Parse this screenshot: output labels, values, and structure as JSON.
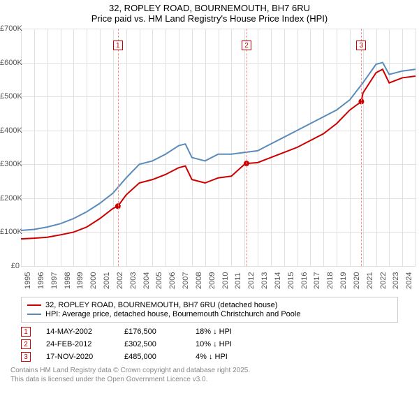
{
  "title_line1": "32, ROPLEY ROAD, BOURNEMOUTH, BH7 6RU",
  "title_line2": "Price paid vs. HM Land Registry's House Price Index (HPI)",
  "chart": {
    "type": "line",
    "background_color": "#ffffff",
    "grid_color": "#e0e0e0",
    "ylim": [
      0,
      700000
    ],
    "ytick_step": 100000,
    "ytick_labels": [
      "£0",
      "£100K",
      "£200K",
      "£300K",
      "£400K",
      "£500K",
      "£600K",
      "£700K"
    ],
    "xlim": [
      1995,
      2025
    ],
    "xtick_step": 1,
    "xtick_labels": [
      "1995",
      "1996",
      "1997",
      "1998",
      "1999",
      "2000",
      "2001",
      "2002",
      "2003",
      "2004",
      "2005",
      "2006",
      "2007",
      "2008",
      "2009",
      "2010",
      "2011",
      "2012",
      "2013",
      "2014",
      "2015",
      "2016",
      "2017",
      "2018",
      "2019",
      "2020",
      "2021",
      "2022",
      "2023",
      "2024",
      "2025"
    ],
    "series": [
      {
        "name": "price_paid",
        "color": "#cc0000",
        "width": 2,
        "x": [
          1995,
          1996,
          1997,
          1998,
          1999,
          2000,
          2001,
          2002,
          2002.37,
          2003,
          2004,
          2005,
          2006,
          2007,
          2007.5,
          2008,
          2009,
          2010,
          2011,
          2012,
          2012.15,
          2013,
          2014,
          2015,
          2016,
          2017,
          2018,
          2019,
          2020,
          2020.88,
          2021,
          2022,
          2022.5,
          2023,
          2024,
          2025
        ],
        "y": [
          80000,
          82000,
          85000,
          92000,
          100000,
          115000,
          140000,
          170000,
          176500,
          210000,
          245000,
          255000,
          270000,
          290000,
          295000,
          255000,
          245000,
          260000,
          265000,
          300000,
          302500,
          305000,
          320000,
          335000,
          350000,
          370000,
          390000,
          420000,
          460000,
          485000,
          510000,
          570000,
          580000,
          540000,
          555000,
          560000
        ]
      },
      {
        "name": "hpi",
        "color": "#5b8bb8",
        "width": 2,
        "x": [
          1995,
          1996,
          1997,
          1998,
          1999,
          2000,
          2001,
          2002,
          2003,
          2004,
          2005,
          2006,
          2007,
          2007.5,
          2008,
          2009,
          2010,
          2011,
          2012,
          2013,
          2014,
          2015,
          2016,
          2017,
          2018,
          2019,
          2020,
          2021,
          2022,
          2022.5,
          2023,
          2024,
          2025
        ],
        "y": [
          105000,
          108000,
          115000,
          125000,
          140000,
          160000,
          185000,
          215000,
          260000,
          300000,
          310000,
          330000,
          355000,
          360000,
          320000,
          310000,
          330000,
          330000,
          335000,
          340000,
          360000,
          380000,
          400000,
          420000,
          440000,
          460000,
          490000,
          540000,
          595000,
          600000,
          565000,
          575000,
          580000
        ]
      }
    ],
    "sale_markers": [
      {
        "n": "1",
        "year": 2002.37,
        "price": 176500
      },
      {
        "n": "2",
        "year": 2012.15,
        "price": 302500
      },
      {
        "n": "3",
        "year": 2020.88,
        "price": 485000
      }
    ],
    "dash_color": "#ff8888"
  },
  "legend": {
    "items": [
      {
        "color": "#cc0000",
        "label": "32, ROPLEY ROAD, BOURNEMOUTH, BH7 6RU (detached house)"
      },
      {
        "color": "#5b8bb8",
        "label": "HPI: Average price, detached house, Bournemouth Christchurch and Poole"
      }
    ]
  },
  "sales": [
    {
      "n": "1",
      "date": "14-MAY-2002",
      "price": "£176,500",
      "delta": "18% ↓ HPI"
    },
    {
      "n": "2",
      "date": "24-FEB-2012",
      "price": "£302,500",
      "delta": "10% ↓ HPI"
    },
    {
      "n": "3",
      "date": "17-NOV-2020",
      "price": "£485,000",
      "delta": "4% ↓ HPI"
    }
  ],
  "credit_line1": "Contains HM Land Registry data © Crown copyright and database right 2025.",
  "credit_line2": "This data is licensed under the Open Government Licence v3.0."
}
